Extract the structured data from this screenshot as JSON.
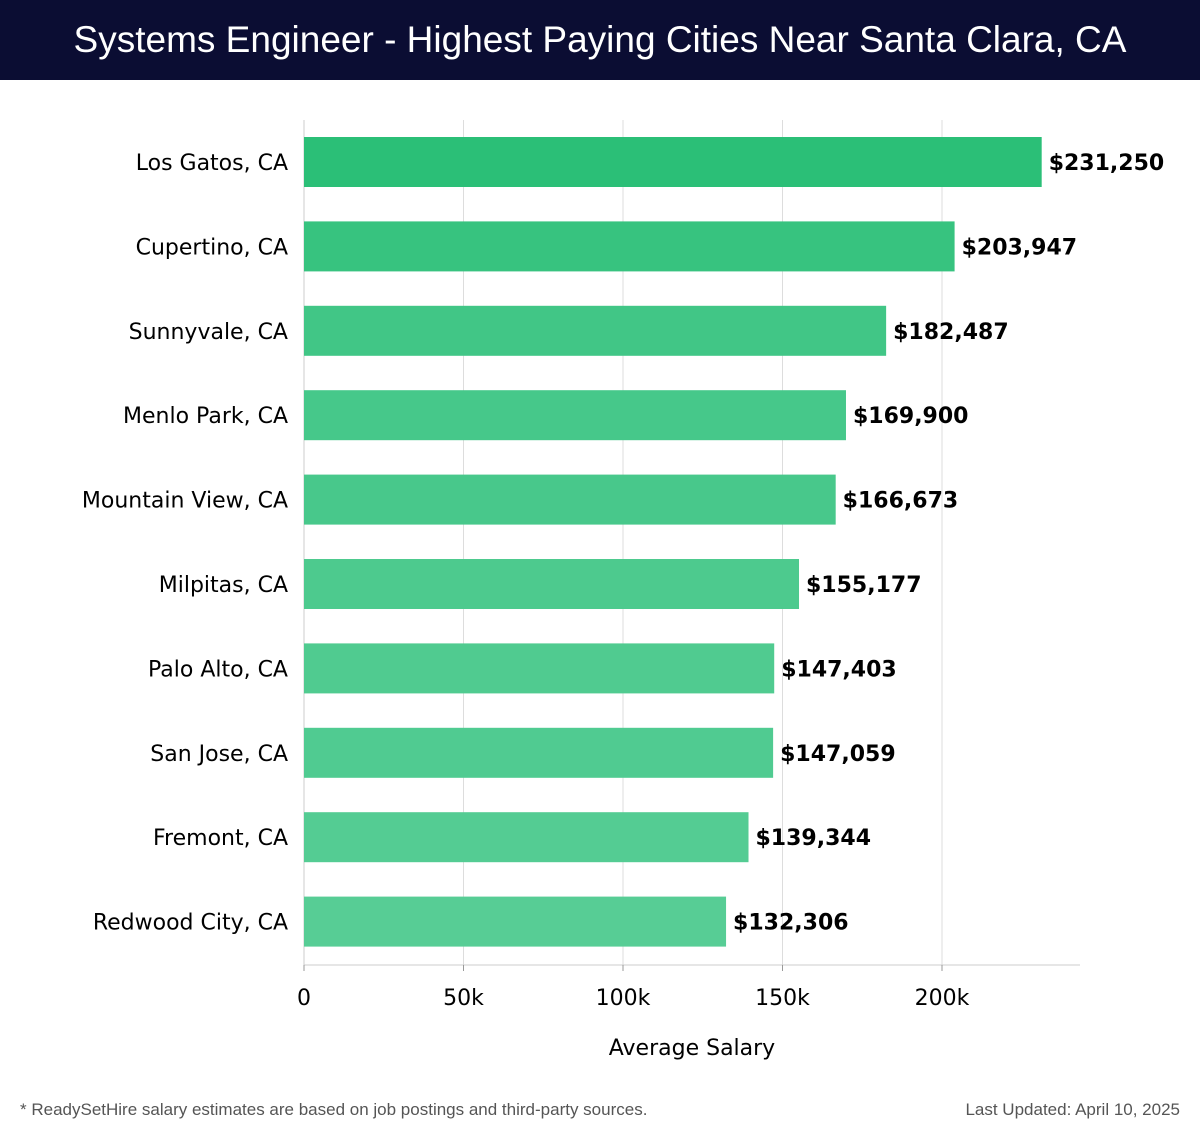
{
  "header": {
    "title": "Systems Engineer - Highest Paying Cities Near Santa Clara, CA"
  },
  "chart_data": {
    "type": "bar",
    "orientation": "horizontal",
    "categories": [
      "Los Gatos, CA",
      "Cupertino, CA",
      "Sunnyvale, CA",
      "Menlo Park, CA",
      "Mountain View, CA",
      "Milpitas, CA",
      "Palo Alto, CA",
      "San Jose, CA",
      "Fremont, CA",
      "Redwood City, CA"
    ],
    "values": [
      231250,
      203947,
      182487,
      169900,
      166673,
      155177,
      147403,
      147059,
      139344,
      132306
    ],
    "value_labels": [
      "$231,250",
      "$203,947",
      "$182,487",
      "$169,900",
      "$166,673",
      "$155,177",
      "$147,403",
      "$147,059",
      "$139,344",
      "$132,306"
    ],
    "xlabel": "Average Salary",
    "ylabel": "",
    "xlim": [
      0,
      243000
    ],
    "xticks": [
      0,
      50000,
      100000,
      150000,
      200000
    ],
    "xtick_labels": [
      "0",
      "50k",
      "100k",
      "150k",
      "200k"
    ],
    "grid": true,
    "colors": {
      "bar_max": "#2bbf77",
      "bar_min": "#57cd95",
      "grid": "#dddddd",
      "text": "#000000"
    }
  },
  "footer": {
    "note": "* ReadySetHire salary estimates are based on job postings and third-party sources.",
    "updated": "Last Updated: April 10, 2025"
  }
}
